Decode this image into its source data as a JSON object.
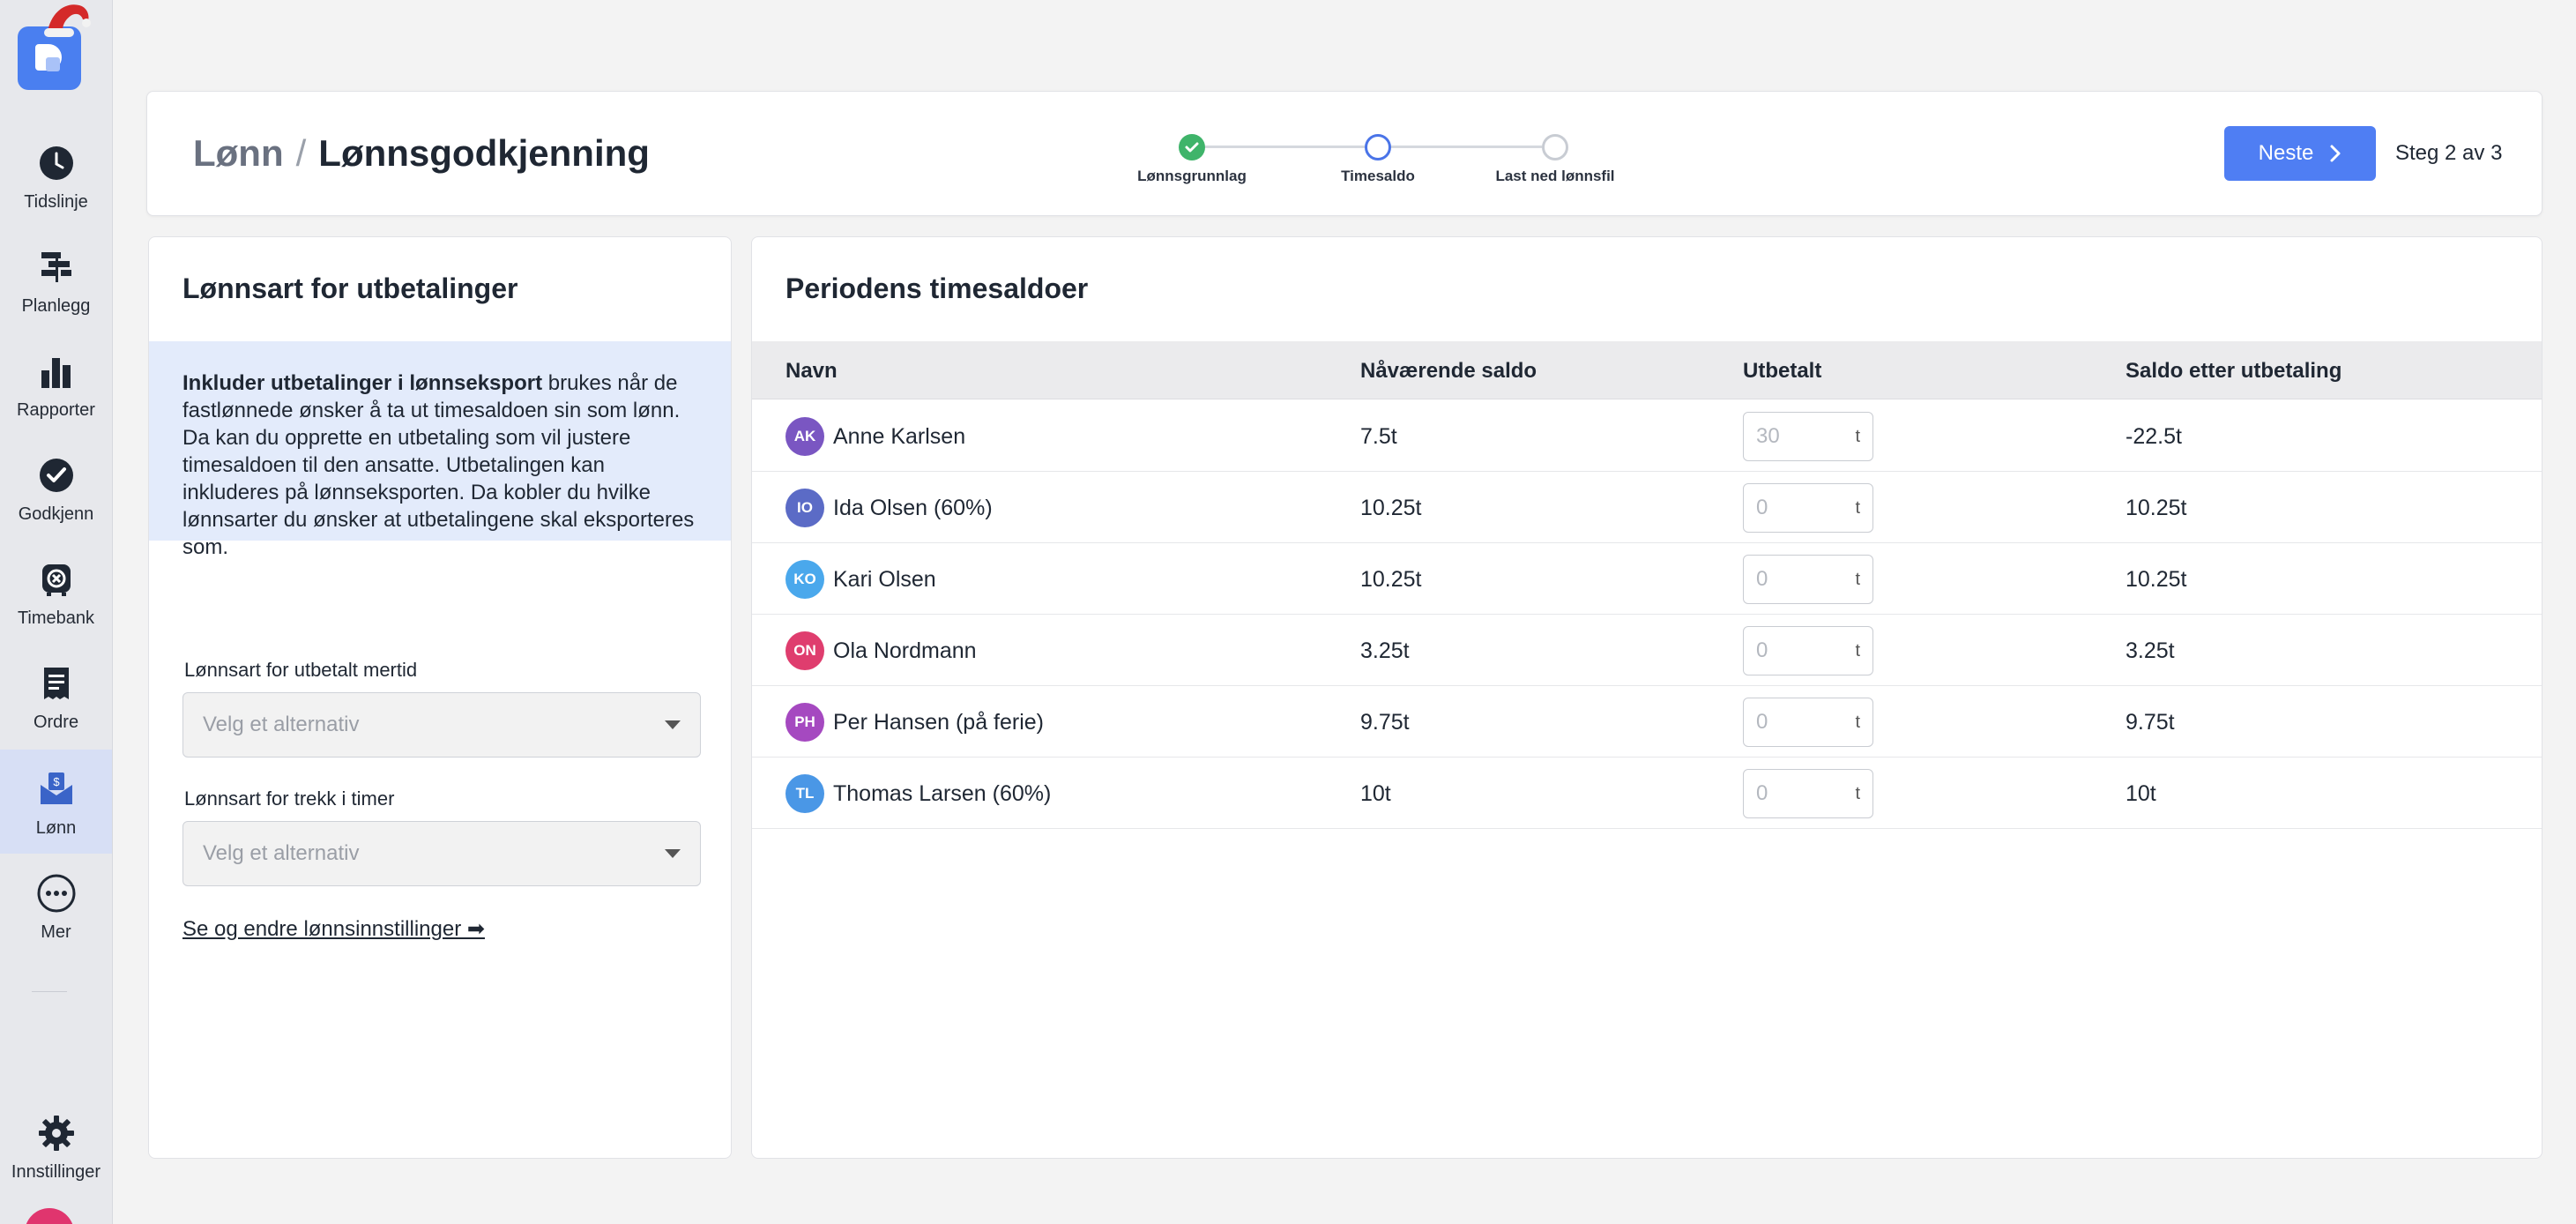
{
  "sidebar": {
    "items": [
      {
        "label": "Tidslinje",
        "icon": "clock-icon"
      },
      {
        "label": "Planlegg",
        "icon": "gantt-icon"
      },
      {
        "label": "Rapporter",
        "icon": "bar-chart-icon"
      },
      {
        "label": "Godkjenn",
        "icon": "check-circle-icon"
      },
      {
        "label": "Timebank",
        "icon": "timebank-icon"
      },
      {
        "label": "Ordre",
        "icon": "receipt-icon"
      },
      {
        "label": "Lønn",
        "icon": "payslip-icon",
        "active": true
      },
      {
        "label": "Mer",
        "icon": "more-icon"
      },
      {
        "label": "Innstillinger",
        "icon": "gear-icon"
      }
    ]
  },
  "header": {
    "breadcrumb_root": "Lønn",
    "breadcrumb_sep": "/",
    "title": "Lønnsgodkjenning",
    "steps": [
      {
        "label": "Lønnsgrunnlag",
        "state": "done"
      },
      {
        "label": "Timesaldo",
        "state": "current"
      },
      {
        "label": "Last ned lønnsfil",
        "state": "todo"
      }
    ],
    "next_label": "Neste",
    "step_count": "Steg 2 av 3"
  },
  "left_panel": {
    "title": "Lønnsart for utbetalinger",
    "info_bold": "Inkluder utbetalinger i lønnseksport",
    "info_text": " brukes når de fastlønnede ønsker å ta ut timesaldoen sin som lønn. Da kan du opprette en utbetaling som vil justere timesaldoen til den ansatte. Utbetalingen kan inkluderes på lønnseksporten. Da kobler du hvilke lønnsarter du ønsker at utbetalingene skal eksporteres som.",
    "field1_label": "Lønnsart for utbetalt mertid",
    "field1_placeholder": "Velg et alternativ",
    "field2_label": "Lønnsart for trekk i timer",
    "field2_placeholder": "Velg et alternativ",
    "settings_link": "Se og endre lønnsinnstillinger ➡"
  },
  "right_panel": {
    "title": "Periodens timesaldoer",
    "columns": [
      "Navn",
      "Nåværende saldo",
      "Utbetalt",
      "Saldo etter utbetaling"
    ],
    "unit": "t",
    "rows": [
      {
        "initials": "AK",
        "name": "Anne Karlsen",
        "color": "#7a56c2",
        "current": "7.5t",
        "paid_placeholder": "30",
        "after": "-22.5t"
      },
      {
        "initials": "IO",
        "name": "Ida Olsen (60%)",
        "color": "#5b6bc6",
        "current": "10.25t",
        "paid_placeholder": "0",
        "after": "10.25t"
      },
      {
        "initials": "KO",
        "name": "Kari Olsen",
        "color": "#4aa8ec",
        "current": "10.25t",
        "paid_placeholder": "0",
        "after": "10.25t"
      },
      {
        "initials": "ON",
        "name": "Ola Nordmann",
        "color": "#df3d6e",
        "current": "3.25t",
        "paid_placeholder": "0",
        "after": "3.25t"
      },
      {
        "initials": "PH",
        "name": "Per Hansen (på ferie)",
        "color": "#a549c0",
        "current": "9.75t",
        "paid_placeholder": "0",
        "after": "9.75t"
      },
      {
        "initials": "TL",
        "name": "Thomas Larsen (60%)",
        "color": "#4a97e6",
        "current": "10t",
        "paid_placeholder": "0",
        "after": "10t"
      }
    ]
  },
  "colors": {
    "accent": "#4f7ef3",
    "success": "#3fb46a",
    "info_bg": "#e3ebfb",
    "sidebar_active": "#d7dff5"
  }
}
